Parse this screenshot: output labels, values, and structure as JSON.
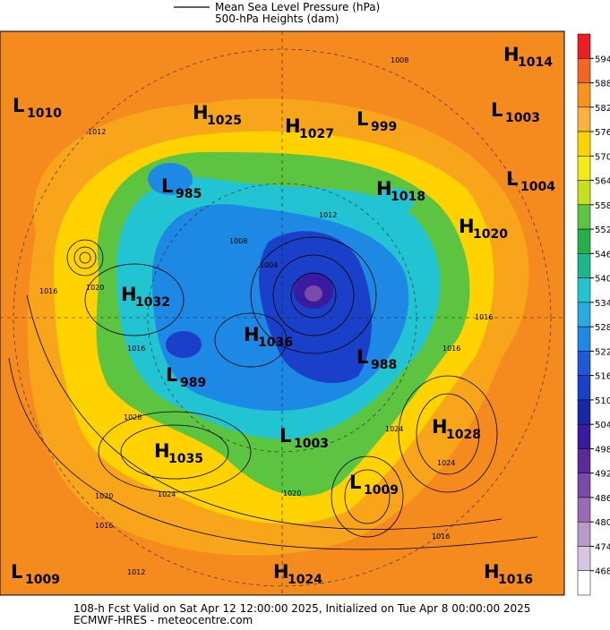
{
  "legend": {
    "line_label": "Mean Sea Level Pressure (hPa)",
    "fill_label": "500-hPa Heights (dam)"
  },
  "colorbar": {
    "ticks": [
      594,
      588,
      582,
      576,
      570,
      564,
      558,
      552,
      546,
      540,
      534,
      528,
      522,
      516,
      510,
      504,
      498,
      492,
      486,
      480,
      474,
      468
    ],
    "colors": [
      "#ee1c24",
      "#f26522",
      "#f7941d",
      "#fbb040",
      "#ffd200",
      "#f5ea14",
      "#c5e01c",
      "#5cc441",
      "#25b14a",
      "#1cb78c",
      "#22c4d4",
      "#29abe2",
      "#1e88e5",
      "#1e5ad8",
      "#1a3fc8",
      "#1a28a8",
      "#3a1aa0",
      "#5a2a9a",
      "#7a4aa8",
      "#9a6ab8",
      "#b89ac8",
      "#d6c6e0",
      "#ffffff"
    ]
  },
  "centers": [
    {
      "kind": "L",
      "pressure": 1010
    },
    {
      "kind": "H",
      "pressure": 1025
    },
    {
      "kind": "H",
      "pressure": 1027
    },
    {
      "kind": "L",
      "pressure": 999
    },
    {
      "kind": "L",
      "pressure": 1003
    },
    {
      "kind": "H",
      "pressure": 1014
    },
    {
      "kind": "L",
      "pressure": 985
    },
    {
      "kind": "H",
      "pressure": 1018
    },
    {
      "kind": "L",
      "pressure": 1004
    },
    {
      "kind": "H",
      "pressure": 1020
    },
    {
      "kind": "H",
      "pressure": 1032
    },
    {
      "kind": "H",
      "pressure": 1036
    },
    {
      "kind": "L",
      "pressure": 988
    },
    {
      "kind": "L",
      "pressure": 989
    },
    {
      "kind": "H",
      "pressure": 1028
    },
    {
      "kind": "H",
      "pressure": 1035
    },
    {
      "kind": "L",
      "pressure": 1003
    },
    {
      "kind": "L",
      "pressure": 1009
    },
    {
      "kind": "L",
      "pressure": 1009
    },
    {
      "kind": "H",
      "pressure": 1024
    },
    {
      "kind": "H",
      "pressure": 1016
    }
  ],
  "contour_labels": [
    1008,
    1012,
    1012,
    1016,
    1020,
    1016,
    1028,
    1024,
    1020,
    1016,
    1012,
    1016,
    1024,
    1024,
    1016,
    1016,
    1020,
    1004,
    1008
  ],
  "footer": {
    "valid": "108-h Fcst Valid on Sat Apr 12 12:00:00 2025, Initialized on Tue Apr  8 00:00:00 2025",
    "source": "ECMWF-HRES - meteocentre.com"
  }
}
